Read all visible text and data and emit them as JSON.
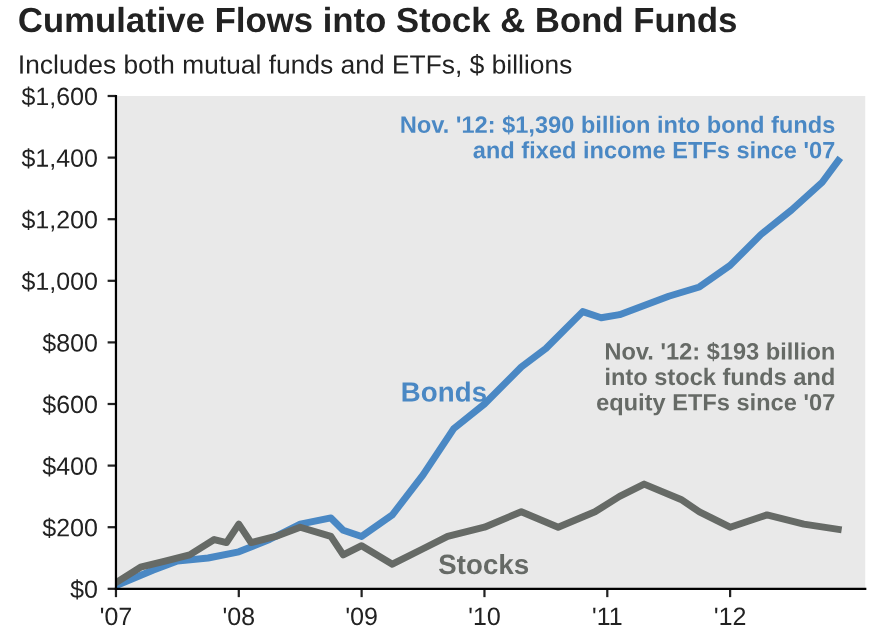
{
  "chart_data": {
    "type": "line",
    "title": "Cumulative Flows into Stock & Bond Funds",
    "subtitle": "Includes both mutual funds and ETFs, $ billions",
    "series": [
      {
        "name": "Bonds",
        "color": "#4a88c4",
        "x": [
          2007,
          2007.3,
          2007.5,
          2007.75,
          2008,
          2008.25,
          2008.5,
          2008.75,
          2008.85,
          2009,
          2009.25,
          2009.5,
          2009.75,
          2010,
          2010.3,
          2010.5,
          2010.8,
          2010.95,
          2011.1,
          2011.5,
          2011.75,
          2012,
          2012.25,
          2012.5,
          2012.75,
          2012.88
        ],
        "values": [
          10,
          60,
          90,
          100,
          120,
          160,
          210,
          230,
          190,
          170,
          240,
          370,
          520,
          600,
          720,
          780,
          900,
          880,
          890,
          950,
          980,
          1050,
          1150,
          1230,
          1320,
          1390
        ]
      },
      {
        "name": "Stocks",
        "color": "#666a66",
        "x": [
          2007,
          2007.2,
          2007.4,
          2007.6,
          2007.8,
          2007.9,
          2008,
          2008.1,
          2008.3,
          2008.5,
          2008.75,
          2008.85,
          2009,
          2009.25,
          2009.5,
          2009.7,
          2010,
          2010.3,
          2010.6,
          2010.9,
          2011.1,
          2011.3,
          2011.6,
          2011.75,
          2012,
          2012.3,
          2012.6,
          2012.88
        ],
        "values": [
          20,
          70,
          90,
          110,
          160,
          150,
          210,
          150,
          170,
          200,
          170,
          110,
          140,
          80,
          130,
          170,
          200,
          250,
          200,
          250,
          300,
          340,
          290,
          250,
          200,
          240,
          210,
          193
        ]
      }
    ],
    "annotations": [
      "Nov. '12: $1,390 billion into bond funds\nand fixed income ETFs since '07",
      "Nov. '12: $193 billion\ninto stock funds and\nequity ETFs since '07"
    ],
    "xlim": [
      2007,
      2013.1
    ],
    "xticks": [
      {
        "value": 2007,
        "label": "'07"
      },
      {
        "value": 2008,
        "label": "'08"
      },
      {
        "value": 2009,
        "label": "'09"
      },
      {
        "value": 2010,
        "label": "'10"
      },
      {
        "value": 2011,
        "label": "'11"
      },
      {
        "value": 2012,
        "label": "'12"
      }
    ],
    "ylim": [
      0,
      1600
    ],
    "yticks": [
      {
        "value": 0,
        "label": "$0"
      },
      {
        "value": 200,
        "label": "$200"
      },
      {
        "value": 400,
        "label": "$400"
      },
      {
        "value": 600,
        "label": "$600"
      },
      {
        "value": 800,
        "label": "$800"
      },
      {
        "value": 1000,
        "label": "$1,000"
      },
      {
        "value": 1200,
        "label": "$1,200"
      },
      {
        "value": 1400,
        "label": "$1,400"
      },
      {
        "value": 1600,
        "label": "$1,600"
      }
    ],
    "grid": false,
    "legend": false
  }
}
